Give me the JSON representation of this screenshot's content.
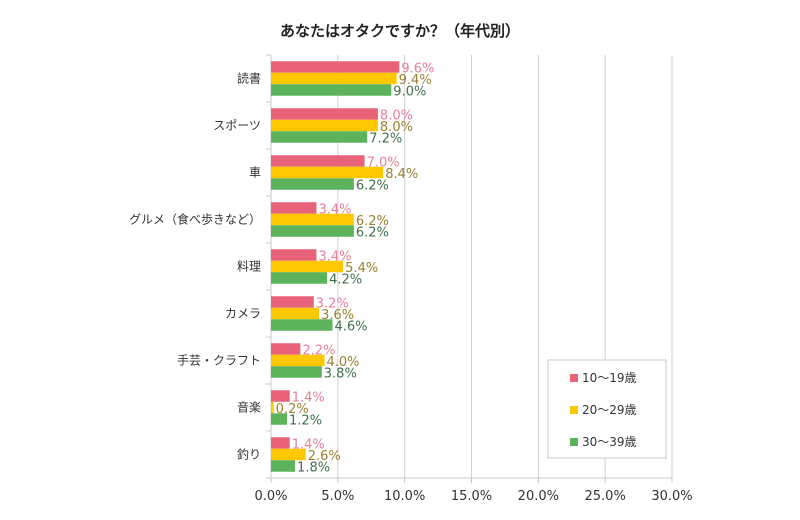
{
  "chart_data": {
    "type": "bar",
    "orientation": "horizontal",
    "title": "あなたはオタクですか？（年代別）",
    "xlabel": "",
    "ylabel": "",
    "xlim": [
      0,
      30
    ],
    "x_ticks": [
      "0.0%",
      "5.0%",
      "10.0%",
      "15.0%",
      "20.0%",
      "25.0%",
      "30.0%"
    ],
    "x_tick_values": [
      0,
      5,
      10,
      15,
      20,
      25,
      30
    ],
    "grid": true,
    "legend_position": "bottom-right",
    "categories": [
      "読書",
      "スポーツ",
      "車",
      "グルメ（食べ歩きなど）",
      "料理",
      "カメラ",
      "手芸・クラフト",
      "音楽",
      "釣り"
    ],
    "series": [
      {
        "name": "10～19歳",
        "color": "#e8627a",
        "label_color": "#e8809a",
        "values": [
          9.6,
          8.0,
          7.0,
          3.4,
          3.4,
          3.2,
          2.2,
          1.4,
          1.4
        ]
      },
      {
        "name": "20～29歳",
        "color": "#fdc800",
        "label_color": "#9a8030",
        "values": [
          9.4,
          8.0,
          8.4,
          6.2,
          5.4,
          3.6,
          4.0,
          0.2,
          2.6
        ]
      },
      {
        "name": "30～39歳",
        "color": "#5cb35c",
        "label_color": "#3f6f4a",
        "values": [
          9.0,
          7.2,
          6.2,
          6.2,
          4.2,
          4.6,
          3.8,
          1.2,
          1.8
        ]
      }
    ],
    "value_suffix": "%"
  }
}
